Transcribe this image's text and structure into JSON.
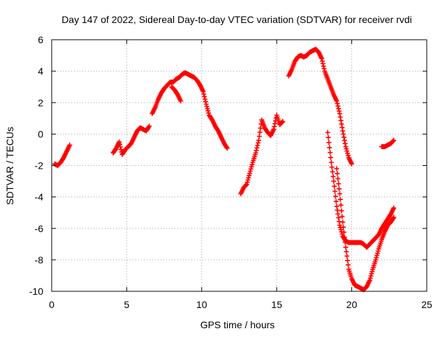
{
  "chart_data": {
    "type": "scatter",
    "title": "Day 147 of 2022, Sidereal Day-to-day VTEC variation (SDTVAR) for receiver rvdi",
    "xlabel": "GPS time / hours",
    "ylabel": "SDTVAR / TECUs",
    "xlim": [
      0,
      25
    ],
    "ylim": [
      -10,
      6
    ],
    "xticks": [
      0,
      5,
      10,
      15,
      20,
      25
    ],
    "yticks": [
      -10,
      -8,
      -6,
      -4,
      -2,
      0,
      2,
      4,
      6
    ],
    "grid": true,
    "legend": "none",
    "marker": "+",
    "color": "#ff0000",
    "series": [
      {
        "x": [
          0.2,
          0.4,
          0.6,
          0.8,
          1.0,
          1.2
        ],
        "y": [
          -1.9,
          -2.0,
          -1.8,
          -1.5,
          -1.1,
          -0.7
        ]
      },
      {
        "x": [
          4.1,
          4.3,
          4.5,
          4.7,
          4.9,
          5.1,
          5.3,
          5.5,
          5.7,
          5.9,
          6.1,
          6.3,
          6.5
        ],
        "y": [
          -1.2,
          -0.9,
          -0.5,
          -1.3,
          -1.0,
          -0.8,
          -0.6,
          -0.2,
          0.2,
          0.4,
          0.3,
          0.2,
          0.5
        ]
      },
      {
        "x": [
          6.7,
          6.9,
          7.1,
          7.3,
          7.5,
          7.7,
          7.9,
          8.1,
          8.3,
          8.5,
          8.7,
          8.9,
          9.1,
          9.3,
          9.5,
          9.7,
          9.9,
          10.1,
          10.3,
          10.5,
          10.7,
          10.9,
          11.1,
          11.3,
          11.5,
          11.7
        ],
        "y": [
          1.3,
          1.7,
          2.2,
          2.6,
          2.9,
          3.1,
          3.3,
          3.3,
          3.5,
          3.6,
          3.8,
          3.9,
          3.8,
          3.7,
          3.6,
          3.4,
          3.1,
          2.7,
          1.9,
          1.2,
          0.9,
          0.5,
          0.2,
          -0.2,
          -0.6,
          -0.9
        ]
      },
      {
        "x": [
          8.0,
          8.2,
          8.4,
          8.6
        ],
        "y": [
          3.0,
          2.8,
          2.5,
          2.1
        ]
      },
      {
        "x": [
          12.6,
          12.8,
          13.0,
          13.2,
          13.4,
          13.6,
          13.8,
          14.0,
          14.2,
          14.4,
          14.6,
          14.8,
          15.0,
          15.2,
          15.4
        ],
        "y": [
          -3.8,
          -3.4,
          -3.2,
          -2.5,
          -1.8,
          -1.2,
          -0.4,
          0.9,
          0.4,
          0.1,
          -0.1,
          0.3,
          1.2,
          0.6,
          0.8
        ]
      },
      {
        "x": [
          15.8,
          16.0,
          16.2,
          16.4,
          16.6,
          16.8,
          17.0,
          17.2,
          17.4,
          17.6,
          17.8,
          18.0,
          18.2,
          18.4,
          18.6,
          18.8,
          19.0,
          19.2,
          19.4,
          19.6,
          19.8,
          20.0
        ],
        "y": [
          3.7,
          4.1,
          4.6,
          4.9,
          5.0,
          4.9,
          5.0,
          5.2,
          5.3,
          5.4,
          5.2,
          4.8,
          4.0,
          3.5,
          3.0,
          2.5,
          2.1,
          1.3,
          0.2,
          -0.8,
          -1.5,
          -1.9
        ]
      },
      {
        "x": [
          18.4,
          18.6,
          18.8,
          19.0,
          19.2,
          19.4,
          19.6,
          19.8,
          20.0,
          20.2,
          20.4,
          20.6,
          20.8,
          21.0,
          21.2,
          21.4,
          21.6,
          21.8,
          22.0,
          22.2,
          22.4,
          22.6,
          22.8
        ],
        "y": [
          0.1,
          -1.5,
          -3.0,
          -4.6,
          -5.8,
          -6.5,
          -6.8,
          -6.9,
          -6.9,
          -6.9,
          -6.9,
          -6.9,
          -7.0,
          -7.2,
          -7.0,
          -6.8,
          -6.6,
          -6.4,
          -6.0,
          -5.7,
          -5.4,
          -5.1,
          -4.7
        ]
      },
      {
        "x": [
          19.0,
          19.2,
          19.4,
          19.6,
          19.8,
          20.0,
          20.2,
          20.4,
          20.6,
          20.8,
          21.0,
          21.2,
          21.4,
          21.6,
          21.8,
          22.0,
          22.2,
          22.4,
          22.6,
          22.8
        ],
        "y": [
          -2.2,
          -3.8,
          -5.6,
          -7.2,
          -8.6,
          -9.2,
          -9.6,
          -9.7,
          -9.8,
          -9.9,
          -9.7,
          -9.3,
          -8.6,
          -8.0,
          -7.3,
          -6.7,
          -6.2,
          -5.8,
          -5.6,
          -5.3
        ]
      },
      {
        "x": [
          22.0,
          22.2,
          22.4,
          22.6,
          22.8
        ],
        "y": [
          -0.8,
          -0.8,
          -0.7,
          -0.6,
          -0.4
        ]
      }
    ]
  }
}
